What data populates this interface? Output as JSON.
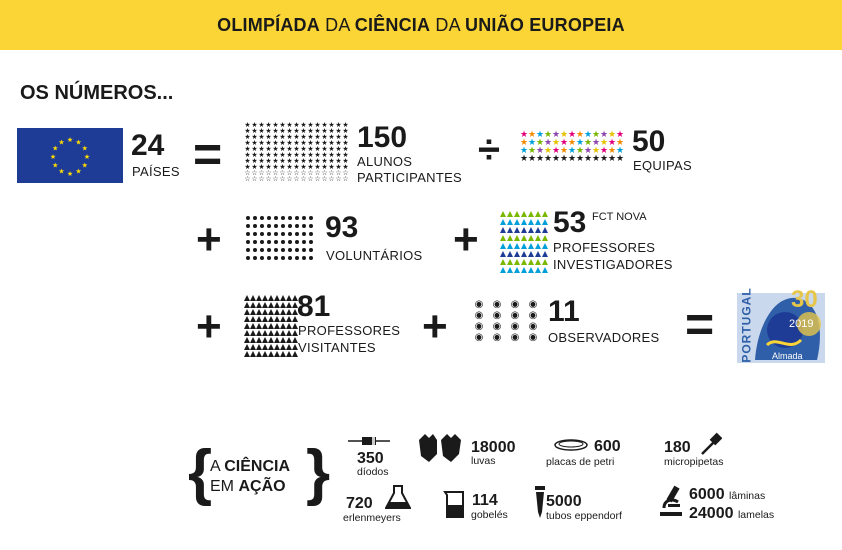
{
  "banner": {
    "w1": "OLIMPÍADA",
    "w2": " DA ",
    "w3": "CIÊNCIA",
    "w4": " DA ",
    "w5": "UNIÃO EUROPEIA"
  },
  "heading": "OS NÚMEROS...",
  "countries": {
    "value": "24",
    "label": "PAÍSES"
  },
  "students": {
    "value": "150",
    "label1": "ALUNOS",
    "label2": "PARTICIPANTES"
  },
  "teams": {
    "value": "50",
    "label": "EQUIPAS"
  },
  "volunteers": {
    "value": "93",
    "label": "VOLUNTÁRIOS"
  },
  "researchers": {
    "value": "53",
    "tag": "FCT NOVA",
    "label1": "PROFESSORES",
    "label2": "INVESTIGADORES"
  },
  "visiting": {
    "value": "81",
    "label1": "PROFESSORES",
    "label2": "VISITANTES"
  },
  "observers": {
    "value": "11",
    "label": "OBSERVADORES"
  },
  "operators": {
    "equals": "=",
    "divide": "÷",
    "plus": "+"
  },
  "logo": {
    "country": "PORTUGAL",
    "year": "2019",
    "city": "Almada",
    "anniv": "30"
  },
  "science": {
    "w1": "A ",
    "w2": "CIÊNCIA",
    "w3": "EM ",
    "w4": "AÇÃO"
  },
  "items": {
    "diodes": {
      "value": "350",
      "label": "díodos"
    },
    "gloves": {
      "value": "18000",
      "label": "luvas"
    },
    "petri": {
      "value": "600",
      "label": "placas de petri"
    },
    "pipettes": {
      "value": "180",
      "label": "micropipetas"
    },
    "erlenmeyers": {
      "value": "720",
      "label": "erlenmeyers"
    },
    "beakers": {
      "value": "114",
      "label": "gobelés"
    },
    "eppendorf": {
      "value": "5000",
      "label": "tubos eppendorf"
    },
    "slides": {
      "value": "6000",
      "label": "lâminas"
    },
    "coverslips": {
      "value": "24000",
      "label": "lamelas"
    }
  },
  "colors": {
    "yellow": "#fbd535",
    "eu_blue": "#1e3c96",
    "eu_star": "#ffdd00",
    "ink": "#1a1a1a"
  }
}
